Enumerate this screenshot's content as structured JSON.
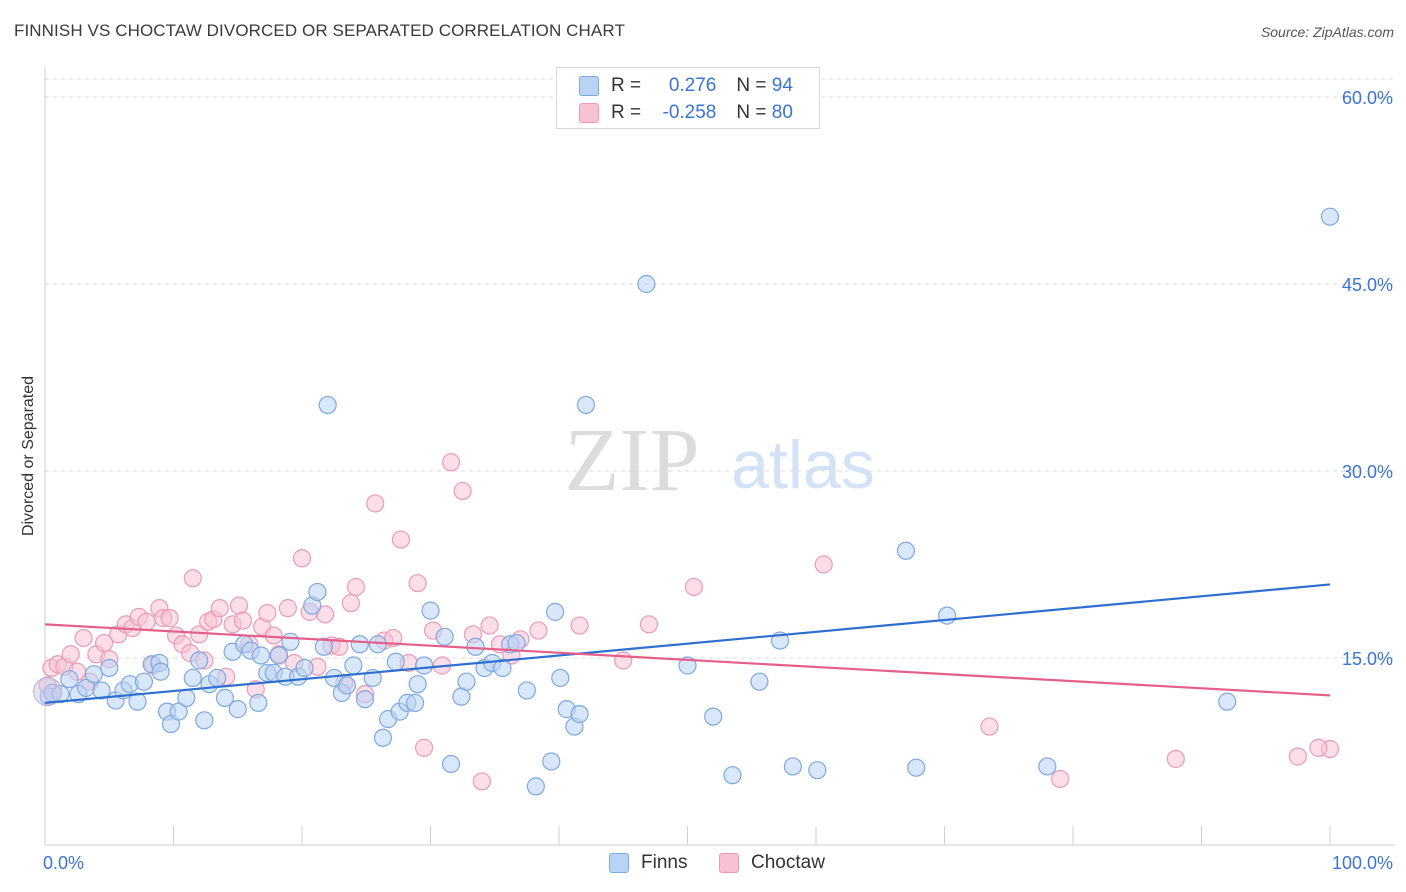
{
  "title": "FINNISH VS CHOCTAW DIVORCED OR SEPARATED CORRELATION CHART",
  "source": "Source: ZipAtlas.com",
  "watermark": {
    "zip": "ZIP",
    "atlas": "atlas"
  },
  "colors": {
    "finns_fill": "#b9d3f5",
    "finns_stroke": "#7fa8e0",
    "finns_line": "#2f6fd0",
    "choctaw_fill": "#f7c3d3",
    "choctaw_stroke": "#eb9bb5",
    "choctaw_line": "#e3608a",
    "tick_label": "#3b74d3",
    "grid": "#d9d9d9"
  },
  "legend": {
    "rows": [
      {
        "r_label": "R = ",
        "r_value": "0.276",
        "n_label": "N = ",
        "n_value": "94",
        "series": "finns"
      },
      {
        "r_label": "R = ",
        "r_value": "-0.258",
        "n_label": "N = ",
        "n_value": "80",
        "series": "choctaw"
      }
    ]
  },
  "bottom_legend": {
    "finns": "Finns",
    "choctaw": "Choctaw"
  },
  "chart_data": {
    "type": "scatter",
    "ylabel": "Divorced or Separated",
    "xlabel": "",
    "xlim": [
      0,
      100
    ],
    "ylim": [
      0,
      60
    ],
    "x_tick_labels": [
      "0.0%",
      "100.0%"
    ],
    "y_ticks": [
      15,
      30,
      45,
      60
    ],
    "y_tick_labels": [
      "15.0%",
      "30.0%",
      "45.0%",
      "60.0%"
    ],
    "grid": "horizontal dashed",
    "legend_position": "top-center",
    "series": [
      {
        "name": "Finns",
        "trend": {
          "x": [
            0,
            100
          ],
          "y": [
            11.4,
            20.9
          ]
        },
        "points": [
          [
            0.3,
            11.9
          ],
          [
            0.6,
            12.2
          ],
          [
            1.2,
            12.1
          ],
          [
            1.9,
            13.3
          ],
          [
            2.6,
            12.1
          ],
          [
            3.2,
            12.6
          ],
          [
            3.8,
            13.7
          ],
          [
            4.4,
            12.4
          ],
          [
            5.0,
            14.2
          ],
          [
            5.5,
            11.6
          ],
          [
            6.1,
            12.4
          ],
          [
            6.6,
            12.9
          ],
          [
            7.2,
            11.5
          ],
          [
            7.7,
            13.1
          ],
          [
            8.3,
            14.5
          ],
          [
            8.9,
            14.6
          ],
          [
            9.0,
            13.9
          ],
          [
            9.5,
            10.7
          ],
          [
            9.8,
            9.7
          ],
          [
            10.4,
            10.7
          ],
          [
            11.0,
            11.8
          ],
          [
            11.5,
            13.4
          ],
          [
            12.0,
            14.8
          ],
          [
            12.4,
            10.0
          ],
          [
            12.8,
            12.9
          ],
          [
            13.4,
            13.4
          ],
          [
            14.0,
            11.8
          ],
          [
            14.6,
            15.5
          ],
          [
            15.0,
            10.9
          ],
          [
            15.5,
            16.1
          ],
          [
            16.0,
            15.6
          ],
          [
            16.6,
            11.4
          ],
          [
            16.8,
            15.2
          ],
          [
            17.3,
            13.8
          ],
          [
            17.8,
            13.8
          ],
          [
            18.2,
            15.2
          ],
          [
            18.7,
            13.5
          ],
          [
            19.1,
            16.3
          ],
          [
            19.7,
            13.5
          ],
          [
            20.2,
            14.2
          ],
          [
            20.8,
            19.2
          ],
          [
            21.2,
            20.3
          ],
          [
            21.7,
            15.9
          ],
          [
            22.0,
            35.3
          ],
          [
            22.5,
            13.4
          ],
          [
            23.1,
            12.2
          ],
          [
            23.5,
            12.8
          ],
          [
            24.0,
            14.4
          ],
          [
            24.5,
            16.1
          ],
          [
            24.9,
            11.7
          ],
          [
            25.5,
            13.4
          ],
          [
            25.9,
            16.1
          ],
          [
            26.3,
            8.6
          ],
          [
            26.7,
            10.1
          ],
          [
            27.3,
            14.7
          ],
          [
            27.6,
            10.7
          ],
          [
            28.2,
            11.4
          ],
          [
            28.8,
            11.4
          ],
          [
            29.0,
            12.9
          ],
          [
            29.5,
            14.4
          ],
          [
            30.0,
            18.8
          ],
          [
            31.1,
            16.7
          ],
          [
            31.6,
            6.5
          ],
          [
            32.4,
            11.9
          ],
          [
            32.8,
            13.1
          ],
          [
            33.5,
            15.9
          ],
          [
            34.2,
            14.2
          ],
          [
            34.8,
            14.6
          ],
          [
            35.6,
            14.2
          ],
          [
            36.2,
            16.1
          ],
          [
            36.7,
            16.2
          ],
          [
            37.5,
            12.4
          ],
          [
            38.2,
            4.7
          ],
          [
            39.4,
            6.7
          ],
          [
            39.7,
            18.7
          ],
          [
            40.1,
            13.4
          ],
          [
            40.6,
            10.9
          ],
          [
            41.2,
            9.5
          ],
          [
            41.6,
            10.5
          ],
          [
            42.1,
            35.3
          ],
          [
            46.8,
            45.0
          ],
          [
            50.0,
            14.4
          ],
          [
            52.0,
            10.3
          ],
          [
            53.5,
            5.6
          ],
          [
            55.6,
            13.1
          ],
          [
            57.2,
            16.4
          ],
          [
            58.2,
            6.3
          ],
          [
            60.1,
            6.0
          ],
          [
            67.0,
            23.6
          ],
          [
            67.8,
            6.2
          ],
          [
            70.2,
            18.4
          ],
          [
            78.0,
            6.3
          ],
          [
            92.0,
            11.5
          ],
          [
            100.0,
            50.4
          ]
        ]
      },
      {
        "name": "Choctaw",
        "trend": {
          "x": [
            0,
            100
          ],
          "y": [
            17.7,
            12.0
          ]
        },
        "points": [
          [
            0.2,
            12.8
          ],
          [
            0.5,
            14.2
          ],
          [
            1.0,
            14.5
          ],
          [
            1.5,
            14.3
          ],
          [
            2.0,
            15.3
          ],
          [
            2.5,
            13.9
          ],
          [
            3.0,
            16.6
          ],
          [
            3.5,
            13.1
          ],
          [
            4.0,
            15.3
          ],
          [
            4.6,
            16.2
          ],
          [
            5.0,
            14.9
          ],
          [
            5.7,
            16.9
          ],
          [
            6.3,
            17.7
          ],
          [
            6.8,
            17.4
          ],
          [
            7.3,
            18.3
          ],
          [
            7.9,
            17.9
          ],
          [
            8.4,
            14.4
          ],
          [
            8.9,
            19.0
          ],
          [
            9.2,
            18.2
          ],
          [
            9.7,
            18.2
          ],
          [
            10.2,
            16.8
          ],
          [
            10.7,
            16.1
          ],
          [
            11.3,
            15.4
          ],
          [
            11.5,
            21.4
          ],
          [
            12.0,
            16.9
          ],
          [
            12.4,
            14.8
          ],
          [
            12.7,
            17.9
          ],
          [
            13.1,
            18.1
          ],
          [
            13.6,
            19.0
          ],
          [
            14.1,
            13.5
          ],
          [
            14.6,
            17.7
          ],
          [
            15.1,
            19.2
          ],
          [
            15.4,
            18.0
          ],
          [
            15.9,
            16.1
          ],
          [
            16.4,
            12.5
          ],
          [
            16.9,
            17.5
          ],
          [
            17.3,
            18.6
          ],
          [
            17.8,
            16.8
          ],
          [
            18.2,
            15.3
          ],
          [
            18.9,
            19.0
          ],
          [
            19.4,
            14.6
          ],
          [
            20.0,
            23.0
          ],
          [
            20.6,
            18.7
          ],
          [
            21.2,
            14.3
          ],
          [
            21.8,
            18.5
          ],
          [
            22.3,
            16.0
          ],
          [
            22.9,
            15.9
          ],
          [
            23.3,
            13.0
          ],
          [
            23.8,
            19.4
          ],
          [
            24.2,
            20.7
          ],
          [
            24.9,
            12.1
          ],
          [
            25.7,
            27.4
          ],
          [
            26.4,
            16.4
          ],
          [
            27.1,
            16.6
          ],
          [
            27.7,
            24.5
          ],
          [
            28.3,
            14.6
          ],
          [
            29.0,
            21.0
          ],
          [
            29.5,
            7.8
          ],
          [
            30.2,
            17.2
          ],
          [
            30.9,
            14.4
          ],
          [
            31.6,
            30.7
          ],
          [
            32.5,
            28.4
          ],
          [
            33.3,
            16.9
          ],
          [
            34.0,
            5.1
          ],
          [
            34.6,
            17.6
          ],
          [
            35.4,
            16.1
          ],
          [
            36.3,
            15.2
          ],
          [
            37.0,
            16.5
          ],
          [
            38.4,
            17.2
          ],
          [
            41.6,
            17.6
          ],
          [
            45.0,
            14.8
          ],
          [
            47.0,
            17.7
          ],
          [
            50.5,
            20.7
          ],
          [
            60.6,
            22.5
          ],
          [
            73.5,
            9.5
          ],
          [
            79.0,
            5.3
          ],
          [
            88.0,
            6.9
          ],
          [
            97.5,
            7.1
          ],
          [
            100.0,
            7.7
          ],
          [
            99.1,
            7.8
          ]
        ]
      }
    ]
  }
}
